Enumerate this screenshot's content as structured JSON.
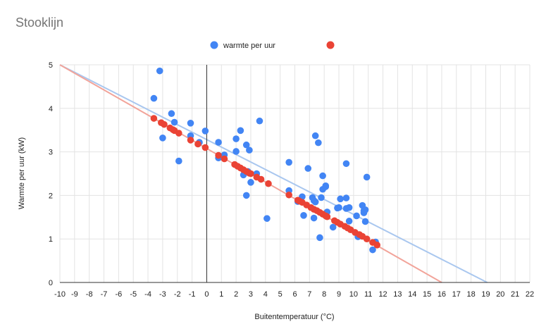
{
  "chart_data": {
    "type": "scatter",
    "title": "Stooklijn",
    "xlabel": "Buitentemperatuur (°C)",
    "ylabel": "Warmte per uur (kW)",
    "xlim": [
      -10,
      22
    ],
    "ylim": [
      0,
      5
    ],
    "x_ticks": [
      "-10",
      "-9",
      "-8",
      "-7",
      "-6",
      "-5",
      "-4",
      "-3",
      "-2",
      "-1",
      "0",
      "1",
      "2",
      "3",
      "4",
      "5",
      "6",
      "7",
      "8",
      "9",
      "10",
      "11",
      "12",
      "13",
      "14",
      "15",
      "16",
      "17",
      "18",
      "19",
      "20",
      "21",
      "22"
    ],
    "y_ticks": [
      "0",
      "1",
      "2",
      "3",
      "4",
      "5"
    ],
    "grid": true,
    "legend_position": "top",
    "colors": {
      "blue": "#4285f4",
      "red": "#ea4335",
      "blue_trend": "#a9c7ef",
      "red_trend": "#f2a49a"
    },
    "series": [
      {
        "name": "warmte per uur",
        "color": "#4285f4",
        "points": [
          [
            -3.2,
            4.86
          ],
          [
            -3.6,
            4.23
          ],
          [
            -2.4,
            3.88
          ],
          [
            -2.2,
            3.68
          ],
          [
            -1.1,
            3.66
          ],
          [
            -3.0,
            3.32
          ],
          [
            -1.1,
            3.37
          ],
          [
            -0.5,
            3.22
          ],
          [
            -0.1,
            3.48
          ],
          [
            -1.9,
            2.79
          ],
          [
            0.8,
            3.22
          ],
          [
            0.8,
            2.86
          ],
          [
            1.2,
            2.93
          ],
          [
            2.0,
            3.3
          ],
          [
            2.3,
            3.49
          ],
          [
            2.0,
            3.01
          ],
          [
            2.7,
            3.16
          ],
          [
            2.9,
            3.04
          ],
          [
            3.6,
            3.71
          ],
          [
            2.5,
            2.47
          ],
          [
            2.8,
            2.55
          ],
          [
            3.4,
            2.5
          ],
          [
            3.0,
            2.3
          ],
          [
            2.7,
            2.0
          ],
          [
            4.1,
            1.47
          ],
          [
            5.6,
            2.76
          ],
          [
            6.9,
            2.62
          ],
          [
            5.6,
            2.11
          ],
          [
            6.2,
            1.86
          ],
          [
            6.5,
            1.97
          ],
          [
            6.6,
            1.54
          ],
          [
            7.4,
            3.37
          ],
          [
            7.6,
            3.21
          ],
          [
            7.3,
            1.88
          ],
          [
            7.4,
            1.85
          ],
          [
            7.9,
            2.45
          ],
          [
            7.9,
            2.14
          ],
          [
            8.1,
            2.2
          ],
          [
            8.2,
            1.62
          ],
          [
            8.1,
            2.22
          ],
          [
            7.3,
            1.48
          ],
          [
            7.2,
            1.95
          ],
          [
            7.7,
            1.03
          ],
          [
            7.8,
            1.95
          ],
          [
            8.6,
            1.27
          ],
          [
            9.1,
            1.92
          ],
          [
            9.0,
            1.72
          ],
          [
            8.9,
            1.71
          ],
          [
            9.5,
            1.94
          ],
          [
            9.5,
            2.73
          ],
          [
            9.5,
            1.7
          ],
          [
            9.7,
            1.72
          ],
          [
            9.7,
            1.41
          ],
          [
            10.2,
            1.53
          ],
          [
            10.6,
            1.77
          ],
          [
            10.7,
            1.65
          ],
          [
            10.7,
            1.6
          ],
          [
            10.8,
            1.67
          ],
          [
            10.8,
            1.4
          ],
          [
            10.9,
            2.42
          ],
          [
            10.3,
            1.05
          ],
          [
            11.5,
            0.93
          ],
          [
            11.3,
            0.75
          ]
        ]
      },
      {
        "name": "",
        "color": "#ea4335",
        "points": [
          [
            -3.6,
            3.77
          ],
          [
            -3.1,
            3.67
          ],
          [
            -2.9,
            3.63
          ],
          [
            -2.5,
            3.55
          ],
          [
            -2.3,
            3.51
          ],
          [
            -2.2,
            3.49
          ],
          [
            -1.9,
            3.43
          ],
          [
            -1.1,
            3.27
          ],
          [
            -0.6,
            3.18
          ],
          [
            -0.1,
            3.1
          ],
          [
            0.8,
            2.92
          ],
          [
            1.2,
            2.84
          ],
          [
            1.9,
            2.71
          ],
          [
            2.1,
            2.67
          ],
          [
            2.3,
            2.63
          ],
          [
            2.5,
            2.59
          ],
          [
            2.7,
            2.55
          ],
          [
            2.9,
            2.51
          ],
          [
            3.0,
            2.5
          ],
          [
            3.4,
            2.42
          ],
          [
            3.7,
            2.37
          ],
          [
            4.2,
            2.27
          ],
          [
            5.6,
            2.01
          ],
          [
            6.2,
            1.89
          ],
          [
            6.3,
            1.87
          ],
          [
            6.5,
            1.84
          ],
          [
            6.8,
            1.78
          ],
          [
            7.1,
            1.72
          ],
          [
            7.3,
            1.68
          ],
          [
            7.5,
            1.65
          ],
          [
            7.7,
            1.61
          ],
          [
            7.9,
            1.57
          ],
          [
            8.1,
            1.53
          ],
          [
            8.2,
            1.51
          ],
          [
            8.7,
            1.42
          ],
          [
            8.9,
            1.38
          ],
          [
            9.1,
            1.34
          ],
          [
            9.4,
            1.29
          ],
          [
            9.6,
            1.25
          ],
          [
            9.8,
            1.21
          ],
          [
            10.1,
            1.15
          ],
          [
            10.4,
            1.1
          ],
          [
            10.6,
            1.06
          ],
          [
            10.9,
            1.0
          ],
          [
            11.3,
            0.92
          ],
          [
            11.6,
            0.86
          ]
        ]
      }
    ],
    "trendlines": [
      {
        "series": "warmte per uur",
        "color": "#a9c7ef",
        "from": [
          -10,
          5.0
        ],
        "to": [
          19.1,
          0
        ]
      },
      {
        "series": "",
        "color": "#f2a49a",
        "from": [
          -10,
          5.0
        ],
        "to": [
          16.0,
          0
        ]
      }
    ]
  }
}
